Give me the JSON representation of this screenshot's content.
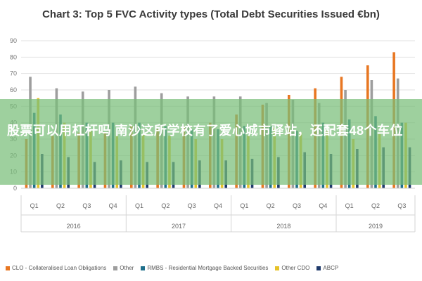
{
  "banner_text": "股票可以用杠杆吗 南沙这所学校有了爱心城市驿站，还配套48个车位",
  "chart_data": {
    "type": "bar",
    "title": "Chart 3: Top 5 FVC Activity types (Total Debt Securities Issued €bn)",
    "ylim": [
      0,
      90
    ],
    "yticks": [
      0,
      10,
      20,
      30,
      40,
      50,
      60,
      70,
      80,
      90
    ],
    "grid": true,
    "legend_position": "bottom",
    "categories": [
      "Q1",
      "Q2",
      "Q3",
      "Q4",
      "Q1",
      "Q2",
      "Q3",
      "Q4",
      "Q1",
      "Q2",
      "Q3",
      "Q4",
      "Q1",
      "Q2",
      "Q3"
    ],
    "groups": [
      {
        "label": "2016",
        "count": 4
      },
      {
        "label": "2017",
        "count": 4
      },
      {
        "label": "2018",
        "count": 4
      },
      {
        "label": "2019",
        "count": 3
      }
    ],
    "series": [
      {
        "name": "CLO - Collateralised Loan Obligations",
        "color": "#e87722",
        "values": [
          30,
          32,
          34,
          34,
          38,
          36,
          38,
          40,
          45,
          51,
          57,
          61,
          68,
          75,
          83
        ]
      },
      {
        "name": "Other",
        "color": "#9e9e9e",
        "values": [
          68,
          61,
          59,
          60,
          62,
          58,
          56,
          56,
          56,
          52,
          54,
          52,
          60,
          66,
          67
        ]
      },
      {
        "name": "RMBS - Residential Mortgage Backed Securities",
        "color": "#1f6f8b",
        "values": [
          46,
          45,
          40,
          40,
          40,
          38,
          36,
          36,
          38,
          38,
          35,
          40,
          42,
          44,
          40
        ]
      },
      {
        "name": "Other CDO",
        "color": "#e6c229",
        "values": [
          55,
          40,
          35,
          32,
          33,
          32,
          30,
          30,
          32,
          37,
          34,
          35,
          30,
          33,
          40
        ]
      },
      {
        "name": "ABCP",
        "color": "#1f3a6b",
        "values": [
          21,
          19,
          16,
          17,
          16,
          16,
          17,
          17,
          18,
          19,
          22,
          21,
          24,
          25,
          25
        ]
      }
    ]
  }
}
